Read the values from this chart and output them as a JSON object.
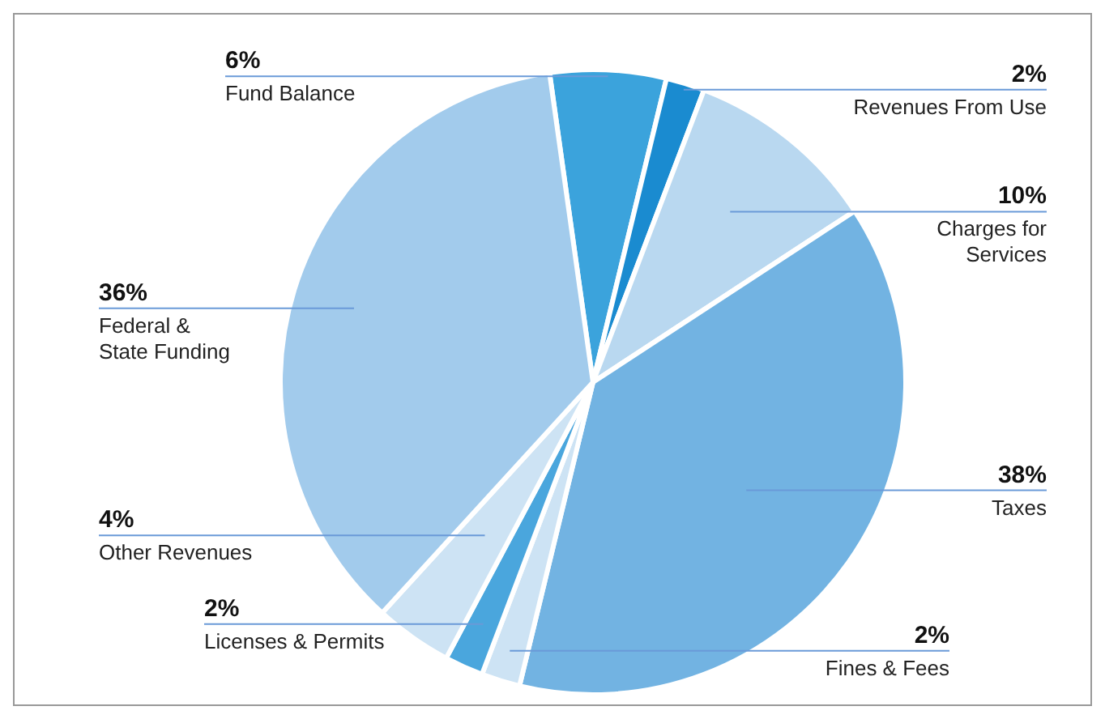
{
  "chart_data": {
    "type": "pie",
    "categories": [
      "Fund Balance",
      "Revenues From Use",
      "Charges for Services",
      "Taxes",
      "Fines & Fees",
      "Licenses & Permits",
      "Other Revenues",
      "Federal & State Funding"
    ],
    "values": [
      6,
      2,
      10,
      38,
      2,
      2,
      4,
      36
    ],
    "value_labels": [
      "6%",
      "2%",
      "10%",
      "38%",
      "2%",
      "2%",
      "4%",
      "36%"
    ],
    "colors": [
      "#3ba3dc",
      "#1a8bd0",
      "#b9d8f0",
      "#72b3e2",
      "#cde3f4",
      "#4aa6dd",
      "#cde3f4",
      "#a2cbec"
    ]
  }
}
